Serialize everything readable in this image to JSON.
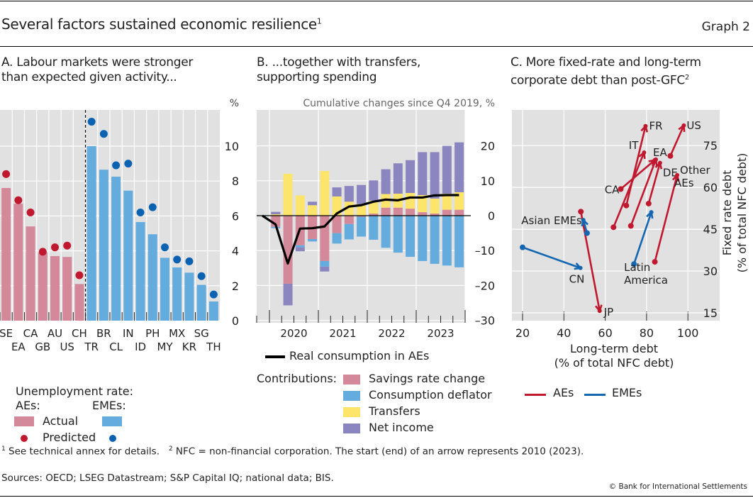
{
  "header": {
    "title": "Several factors sustained economic resilience",
    "title_sup": "1",
    "graph_label": "Graph 2"
  },
  "colors": {
    "ae_actual": "#d4899a",
    "eme_actual": "#64abde",
    "ae_pred": "#c0182f",
    "eme_pred": "#0a62b0",
    "savings": "#d4899a",
    "deflator": "#64abde",
    "transfers": "#fde46b",
    "net_income": "#8b86bf",
    "ae_arrow": "#c0182f",
    "eme_arrow": "#1466b0",
    "plot_bg": "#e1e1e1"
  },
  "chart_data": [
    {
      "id": "A",
      "type": "bar",
      "title_line1": "A. Labour markets were stronger",
      "title_line2": "than expected given activity...",
      "unit": "%",
      "ylim": [
        0,
        12
      ],
      "yticks": [
        0,
        2,
        4,
        6,
        8,
        10
      ],
      "grid": true,
      "categories": [
        "SE",
        "EA",
        "CA",
        "GB",
        "AU",
        "US",
        "CH",
        "TR",
        "BR",
        "CL",
        "IN",
        "ID",
        "PH",
        "MY",
        "MX",
        "KR",
        "SG",
        "TH"
      ],
      "label_row1": [
        "SE",
        "",
        "CA",
        "",
        "AU",
        "",
        "CH",
        "",
        "BR",
        "",
        "IN",
        "",
        "PH",
        "",
        "MX",
        "",
        "SG",
        ""
      ],
      "label_row2": [
        "",
        "EA",
        "",
        "GB",
        "",
        "US",
        "",
        "TR",
        "",
        "CL",
        "",
        "ID",
        "",
        "MY",
        "",
        "KR",
        "",
        "TH"
      ],
      "group": [
        "AE",
        "AE",
        "AE",
        "AE",
        "AE",
        "AE",
        "AE",
        "EME",
        "EME",
        "EME",
        "EME",
        "EME",
        "EME",
        "EME",
        "EME",
        "EME",
        "EME",
        "EME"
      ],
      "series": [
        {
          "name": "Actual",
          "values": [
            7.6,
            6.7,
            5.4,
            3.9,
            3.7,
            3.65,
            2.1,
            10.0,
            8.65,
            8.25,
            7.45,
            5.65,
            4.95,
            3.6,
            3.05,
            2.75,
            2.05,
            1.1
          ]
        },
        {
          "name": "Predicted",
          "values": [
            8.4,
            6.9,
            6.2,
            3.95,
            4.2,
            4.3,
            2.6,
            11.4,
            10.7,
            8.9,
            9.0,
            6.2,
            6.5,
            4.2,
            3.5,
            3.4,
            2.55,
            1.5
          ]
        }
      ],
      "legend": {
        "heading": "Unemployment rate:",
        "ae_label": "AEs:",
        "eme_label": "EMEs:",
        "actual_label": "Actual",
        "predicted_label": "Predicted"
      }
    },
    {
      "id": "B",
      "type": "bar",
      "stacked": true,
      "title_line1": "B. ...together with transfers,",
      "title_line2": "supporting spending",
      "subtitle": "Cumulative changes since Q4 2019, %",
      "ylim": [
        -30,
        24
      ],
      "yticks": [
        -30,
        -20,
        -10,
        0,
        10,
        20
      ],
      "ytick_labels": [
        "–30",
        "–20",
        "–10",
        "0",
        "10",
        "20"
      ],
      "grid": true,
      "x": [
        "2020Q1",
        "2020Q2",
        "2020Q3",
        "2020Q4",
        "2021Q1",
        "2021Q2",
        "2021Q3",
        "2021Q4",
        "2022Q1",
        "2022Q2",
        "2022Q3",
        "2022Q4",
        "2023Q1",
        "2023Q2",
        "2023Q3",
        "2023Q4"
      ],
      "year_labels": [
        "2020",
        "2021",
        "2022",
        "2023"
      ],
      "series": [
        {
          "name": "Savings rate change",
          "values": [
            -3.2,
            -19.5,
            -8.5,
            -6.7,
            -13.0,
            -5.0,
            -2.4,
            -0.3,
            0.6,
            2.3,
            2.3,
            2.0,
            1.0,
            0.6,
            1.7,
            1.7
          ]
        },
        {
          "name": "Consumption deflator",
          "values": [
            -0.4,
            0,
            -0.6,
            -0.7,
            -1.6,
            -3.0,
            -4.4,
            -5.7,
            -6.9,
            -9.2,
            -10.6,
            -11.8,
            -13.0,
            -13.8,
            -14.3,
            -14.8
          ]
        },
        {
          "name": "Transfers",
          "values": [
            0.4,
            12.0,
            5.8,
            3.0,
            12.8,
            5.5,
            4.0,
            3.3,
            3.7,
            3.9,
            4.0,
            4.5,
            4.9,
            4.3,
            4.6,
            5.0
          ]
        },
        {
          "name": "Net income",
          "values": [
            0.7,
            0,
            0,
            1.0,
            0,
            2.6,
            4.5,
            5.5,
            5.8,
            7.1,
            8.7,
            9.4,
            12.3,
            13.3,
            13.7,
            14.3
          ]
        },
        {
          "name": "Net income (neg)",
          "values": [
            0,
            -6.2,
            -1.1,
            0,
            -1.4,
            0,
            0,
            0,
            0,
            0,
            0,
            0,
            0,
            0,
            0,
            0
          ]
        }
      ],
      "line": {
        "name": "Real consumption in AEs",
        "x": [
          "2019Q4",
          "2020Q1",
          "2020Q2",
          "2020Q3",
          "2020Q4",
          "2021Q1",
          "2021Q2",
          "2021Q3",
          "2021Q4",
          "2022Q1",
          "2022Q2",
          "2022Q3",
          "2022Q4",
          "2023Q1",
          "2023Q2",
          "2023Q3",
          "2023Q4"
        ],
        "values": [
          0,
          -2.5,
          -13.7,
          -3.7,
          -3.6,
          -3.1,
          0.6,
          2.6,
          3.0,
          4.0,
          4.6,
          4.4,
          5.2,
          5.2,
          5.8,
          5.9,
          5.9
        ]
      },
      "legend": {
        "line_label": "Real consumption in AEs",
        "contributions_label": "Contributions:",
        "items": [
          "Savings rate change",
          "Consumption deflator",
          "Transfers",
          "Net income"
        ]
      }
    },
    {
      "id": "C",
      "type": "scatter",
      "subtype": "arrows",
      "title_line1": "C. More fixed-rate and long-term",
      "title_line2": "corporate debt than post-GFC",
      "title_sup": "2",
      "xlabel_line1": "Long-term debt",
      "xlabel_line2": "(% of total NFC debt)",
      "ylabel_line1": "Fixed rate debt",
      "ylabel_line2": "(% of total NFC debt)",
      "xlim": [
        20,
        110
      ],
      "ylim": [
        13,
        88
      ],
      "xticks": [
        20,
        40,
        60,
        80,
        100
      ],
      "yticks": [
        15,
        30,
        45,
        60,
        75
      ],
      "grid": true,
      "arrows": [
        {
          "label": "FR",
          "group": "AE",
          "start": [
            70.2,
            53.5
          ],
          "end": [
            79.5,
            82.0
          ]
        },
        {
          "label": "IT",
          "group": "AE",
          "start": [
            64.0,
            45.7
          ],
          "end": [
            78.8,
            72.5
          ]
        },
        {
          "label": "EA",
          "group": "AE",
          "start": [
            72.4,
            46.2
          ],
          "end": [
            84.5,
            70.0
          ]
        },
        {
          "label": "CA",
          "group": "AE",
          "start": [
            67.5,
            59.4
          ],
          "end": [
            84.0,
            69.8
          ]
        },
        {
          "label": "DE",
          "group": "AE",
          "start": [
            81.0,
            54.2
          ],
          "end": [
            86.5,
            68.8
          ]
        },
        {
          "label": "US",
          "group": "AE",
          "start": [
            91.5,
            71.3
          ],
          "end": [
            98.0,
            82.2
          ]
        },
        {
          "label": "Other AEs",
          "group": "AE",
          "start": [
            84.0,
            33.3
          ],
          "end": [
            94.8,
            64.4
          ]
        },
        {
          "label": "JP",
          "group": "AE",
          "start": [
            48.2,
            51.3
          ],
          "end": [
            57.3,
            15.7
          ]
        },
        {
          "label": "Asian EMEs",
          "group": "EME",
          "start": [
            51.2,
            43.6
          ],
          "end": [
            49.4,
            48.3
          ]
        },
        {
          "label": "CN",
          "group": "EME",
          "start": [
            20.0,
            38.5
          ],
          "end": [
            48.0,
            31.1
          ]
        },
        {
          "label": "Latin America",
          "group": "EME",
          "start": [
            73.9,
            32.5
          ],
          "end": [
            82.3,
            51.1
          ]
        }
      ],
      "legend": {
        "items": [
          "AEs",
          "EMEs"
        ]
      }
    }
  ],
  "footnotes": {
    "note1_sup": "1",
    "note1": "See technical annex for details.",
    "note2_sup": "2",
    "note2": "NFC = non-financial corporation. The start (end) of an arrow represents 2010 (2023).",
    "sources": "Sources: OECD; LSEG Datastream; S&P Capital IQ; national data; BIS.",
    "copyright": "© Bank for International Settlements"
  }
}
